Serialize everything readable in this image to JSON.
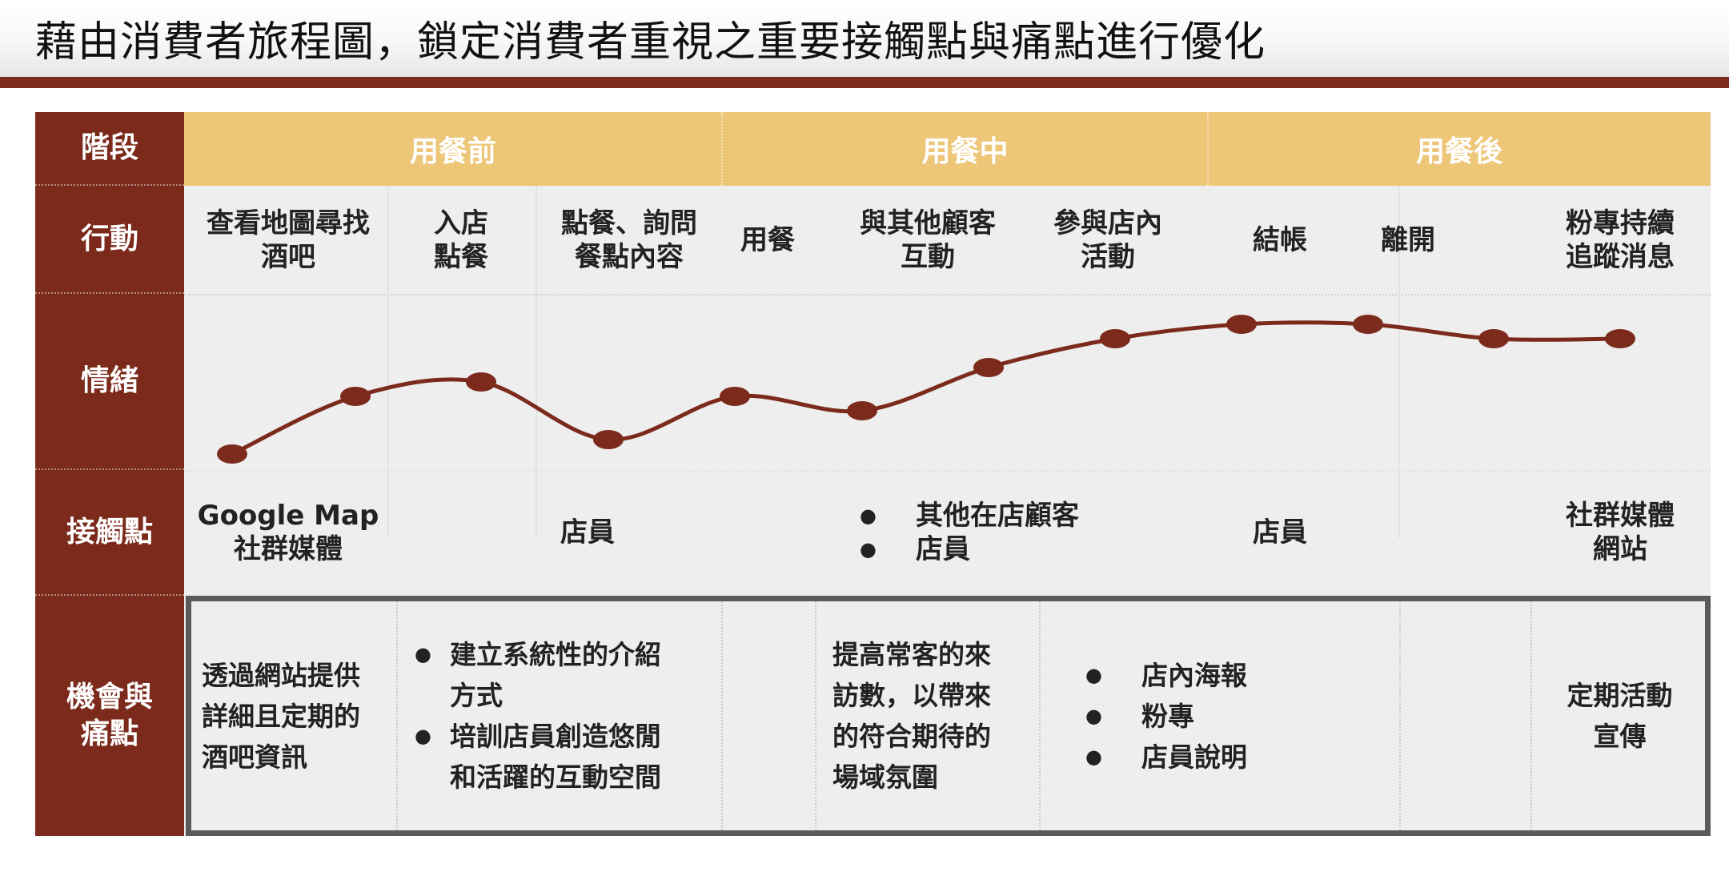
{
  "title": "藉由消費者旅程圖，鎖定消費者重視之重要接觸點與痛點進行優化",
  "colors": {
    "brand": "#7b2a1b",
    "stage_bar": "#edc678",
    "body": "#eeeeee",
    "curve": "#7b2a1b"
  },
  "row_headers": {
    "stage": "階段",
    "action": "行動",
    "emotion": "情緒",
    "touchpoint": "接觸點",
    "opportunity": [
      "機會與",
      "痛點"
    ]
  },
  "stages": [
    "用餐前",
    "用餐中",
    "用餐後"
  ],
  "actions": [
    {
      "lines": [
        "查看地圖尋找",
        "酒吧"
      ]
    },
    {
      "lines": [
        "入店",
        "點餐"
      ]
    },
    {
      "lines": [
        "點餐、詢問",
        "餐點內容"
      ]
    },
    {
      "lines": [
        "用餐"
      ]
    },
    {
      "lines": [
        "與其他顧客",
        "互動"
      ]
    },
    {
      "lines": [
        "參與店內",
        "活動"
      ]
    },
    {
      "lines": [
        "結帳"
      ]
    },
    {
      "lines": [
        "離開"
      ]
    },
    {
      "lines": [
        "粉專持續",
        "追蹤消息"
      ]
    }
  ],
  "emotion_curve": {
    "levels": [
      0.0,
      0.4,
      0.5,
      0.1,
      0.4,
      0.3,
      0.6,
      0.8,
      0.9,
      0.9,
      0.8,
      0.8
    ]
  },
  "touchpoints": {
    "tp1": [
      "Google Map",
      "社群媒體"
    ],
    "tp2": "店員",
    "tp3": [
      "其他在店顧客",
      "店員"
    ],
    "tp4": "店員",
    "tp5": [
      "社群媒體",
      "網站"
    ]
  },
  "opportunities": {
    "o1": [
      "透過網站提供",
      "詳細且定期的",
      "酒吧資訊"
    ],
    "o2": [
      "建立系統性的介紹",
      "方式",
      "培訓店員創造悠閒",
      "和活躍的互動空間"
    ],
    "o3": [
      "提高常客的來",
      "訪數，以帶來",
      "的符合期待的",
      "場域氛圍"
    ],
    "o4": [
      "店內海報",
      "粉專",
      "店員說明"
    ],
    "o5": [
      "定期活動",
      "宣傳"
    ]
  }
}
